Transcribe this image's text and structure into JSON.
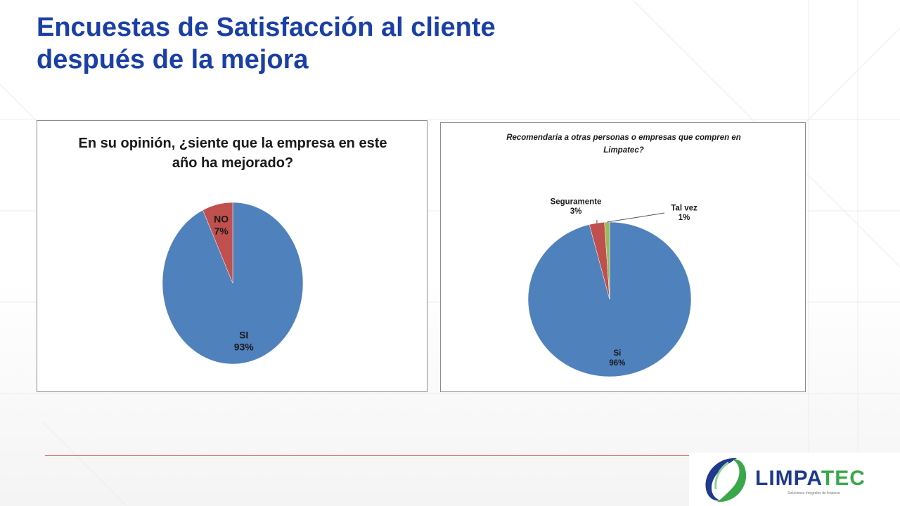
{
  "slide": {
    "title_line1": "Encuestas de Satisfacción al cliente",
    "title_line2": "después de la mejora"
  },
  "colors": {
    "title": "#1a3fa6",
    "blue": "#4f81bd",
    "red": "#c0504d",
    "green": "#9bbb59",
    "divider": "#c0623b"
  },
  "chart_data": [
    {
      "type": "pie",
      "title_line1": "En su opinión, ¿siente que la empresa en este",
      "title_line2": "año ha mejorado?",
      "categories": [
        "SI",
        "NO"
      ],
      "values": [
        93,
        7
      ],
      "value_labels": [
        "93%",
        "7%"
      ],
      "colors": [
        "#4f81bd",
        "#c0504d"
      ]
    },
    {
      "type": "pie",
      "title_line1": "Recomendaría a otras personas o empresas que compren en",
      "title_line2": "Limpatec?",
      "categories": [
        "Si",
        "Seguramente",
        "Tal vez"
      ],
      "values": [
        96,
        3,
        1
      ],
      "value_labels": [
        "96%",
        "3%",
        "1%"
      ],
      "colors": [
        "#4f81bd",
        "#c0504d",
        "#9bbb59"
      ]
    }
  ],
  "logo": {
    "text_part1": "LIMPA",
    "text_part2": "TEC",
    "tagline": "Soluciones Integrales de limpieza"
  }
}
